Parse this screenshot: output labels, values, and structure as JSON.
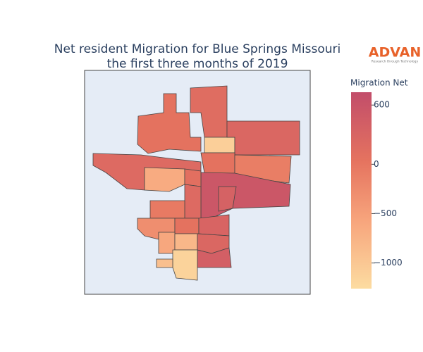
{
  "chart_data": {
    "type": "choropleth",
    "title": [
      "Net resident Migration for Blue Springs Missouri",
      "the first three months of 2019"
    ],
    "colorbar_title": "Migration Net",
    "clim": [
      -1260,
      730
    ],
    "colorscale": [
      [
        0,
        "#fcdca1"
      ],
      [
        0.35,
        "#f7a47c"
      ],
      [
        0.65,
        "#e5735f"
      ],
      [
        1,
        "#c24d6a"
      ]
    ],
    "cticks": [
      {
        "value": 600,
        "label": "600"
      },
      0,
      {
        "value": -500,
        "label": "−500"
      },
      {
        "value": -1000,
        "label": "−1000"
      }
    ],
    "values": [
      50,
      150,
      -1100,
      250,
      200,
      50,
      -100,
      -650,
      550,
      350,
      100,
      200,
      -50,
      -300,
      50,
      300,
      -600,
      -800,
      250,
      400,
      -1150,
      -900
    ],
    "logo": {
      "name": "ADVAN",
      "tagline": "Research through Technology"
    }
  }
}
